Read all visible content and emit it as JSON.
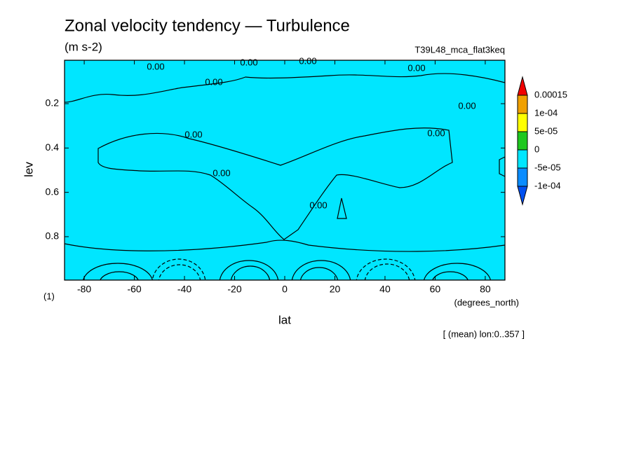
{
  "chart_data": {
    "type": "contour",
    "title": "Zonal velocity tendency — Turbulence",
    "subtitle": "(m s-2)",
    "experiment": "T39L48_mca_flat3keq",
    "x_label": "lat",
    "x_units": "(degrees_north)",
    "y_label": "lev",
    "y_units": "(1)",
    "footnote": "[ (mean) lon:0..357 ]",
    "xlim": [
      -87.86,
      87.86
    ],
    "xticks": [
      -80,
      -60,
      -40,
      -20,
      0,
      20,
      40,
      60,
      80
    ],
    "ylim": [
      0.004,
      0.996
    ],
    "y_inverted": true,
    "yticks": [
      0.2,
      0.4,
      0.6,
      0.8
    ],
    "contour_labels": [
      "0.00",
      "0.00",
      "0.00",
      "0.00",
      "0.00",
      "0.00",
      "0.00",
      "0.00",
      "0.00",
      "0.00"
    ],
    "colorbar": {
      "ticks": [
        0.00015,
        {
          "value": 0.0001,
          "label": "1e-04"
        },
        {
          "value": 5e-05,
          "label": "5e-05"
        },
        0,
        {
          "value": -5e-05,
          "label": "-5e-05"
        },
        {
          "value": -0.0001,
          "label": "-1e-04"
        }
      ],
      "colors": [
        "#f00000",
        "#f0a000",
        "#ffff00",
        "#1ec81e",
        "#00e6ff",
        "#0a8cff",
        "#0050f0"
      ]
    }
  }
}
